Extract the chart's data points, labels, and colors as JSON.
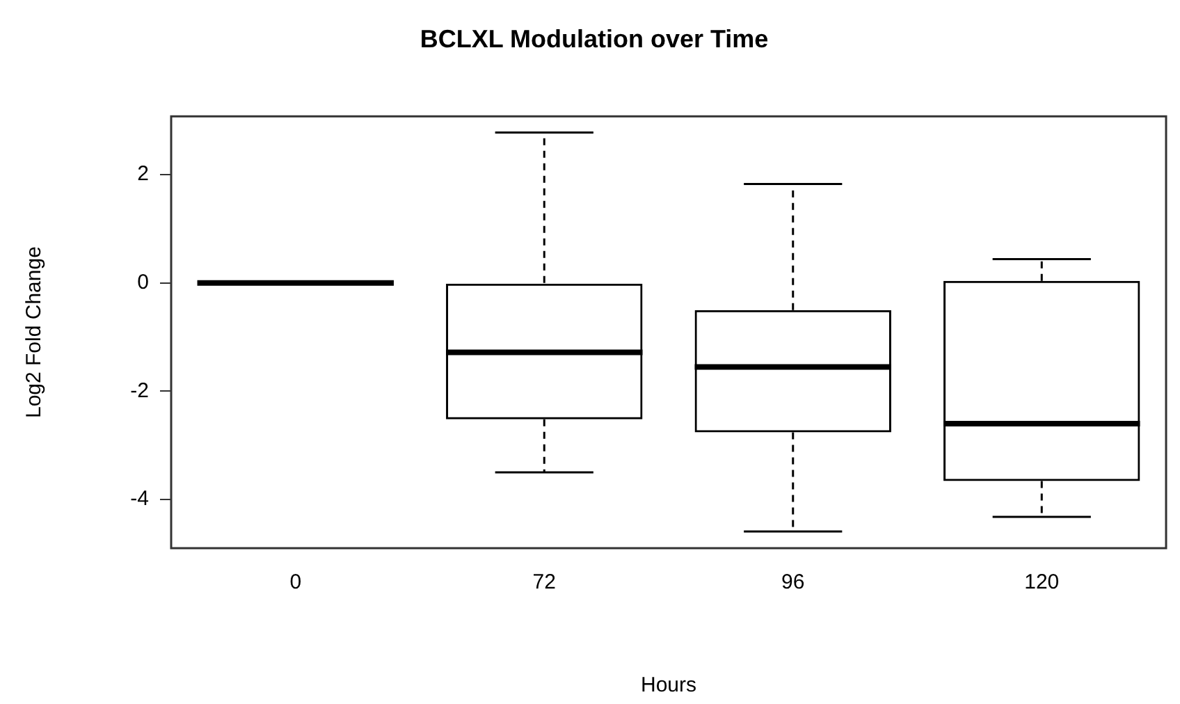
{
  "chart_data": {
    "type": "box",
    "title": "BCLXL Modulation over Time",
    "xlabel": "Hours",
    "ylabel": "Log2 Fold Change",
    "categories": [
      "0",
      "72",
      "96",
      "120"
    ],
    "boxes": [
      {
        "low": 0,
        "q1": 0,
        "median": 0,
        "q3": 0,
        "high": 0
      },
      {
        "low": -3.5,
        "q1": -2.52,
        "median": -1.28,
        "q3": 0,
        "high": 2.78
      },
      {
        "low": -4.59,
        "q1": -2.76,
        "median": -1.55,
        "q3": -0.5,
        "high": 1.83
      },
      {
        "low": -4.32,
        "q1": -3.66,
        "median": -2.6,
        "q3": 0.04,
        "high": 0.44
      }
    ],
    "color": "#000000",
    "ylim": [
      -4.9,
      3.08
    ],
    "yticks": [
      -4,
      -2,
      0,
      2
    ],
    "grid": false,
    "legend": false
  }
}
